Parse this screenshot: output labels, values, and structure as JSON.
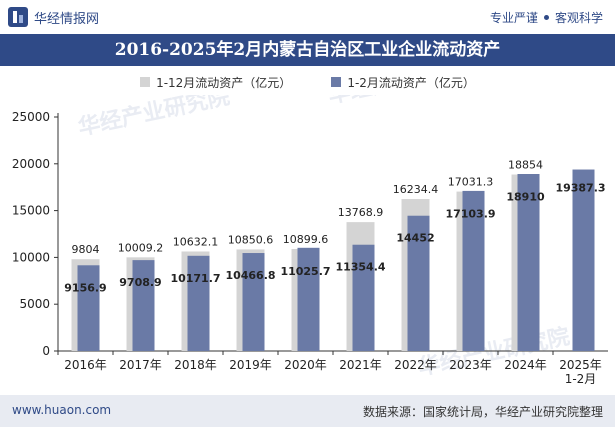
{
  "header": {
    "brand": "华经情报网",
    "tagline_left": "专业严谨",
    "tagline_right": "客观科学"
  },
  "footer": {
    "website": "www.huaon.com",
    "source": "数据来源：国家统计局，华经产业研究院整理"
  },
  "watermark_text": "华经产业研究院",
  "colors": {
    "brand": "#2f4a87",
    "bar_annual": "#d4d4d4",
    "bar_period": "#6a7aa6"
  },
  "chart_data": {
    "type": "bar",
    "title": "2016-2025年2月内蒙古自治区工业企业流动资产",
    "categories": [
      "2016年",
      "2017年",
      "2018年",
      "2019年",
      "2020年",
      "2021年",
      "2022年",
      "2023年",
      "2024年",
      "2025年\n1-2月"
    ],
    "series": [
      {
        "name": "1-12月流动资产（亿元）",
        "values": [
          9804,
          10009.2,
          10632.1,
          10850.6,
          10899.6,
          13768.9,
          16234.4,
          17031.3,
          18854,
          null
        ]
      },
      {
        "name": "1-2月流动资产（亿元）",
        "values": [
          9156.9,
          9708.9,
          10171.7,
          10466.8,
          11025.7,
          11354.4,
          14452,
          17103.9,
          18910,
          19387.3
        ]
      }
    ],
    "ylim": [
      0,
      25000
    ],
    "yticks": [
      0,
      5000,
      10000,
      15000,
      20000,
      25000
    ],
    "grid": false,
    "legend": "top"
  }
}
